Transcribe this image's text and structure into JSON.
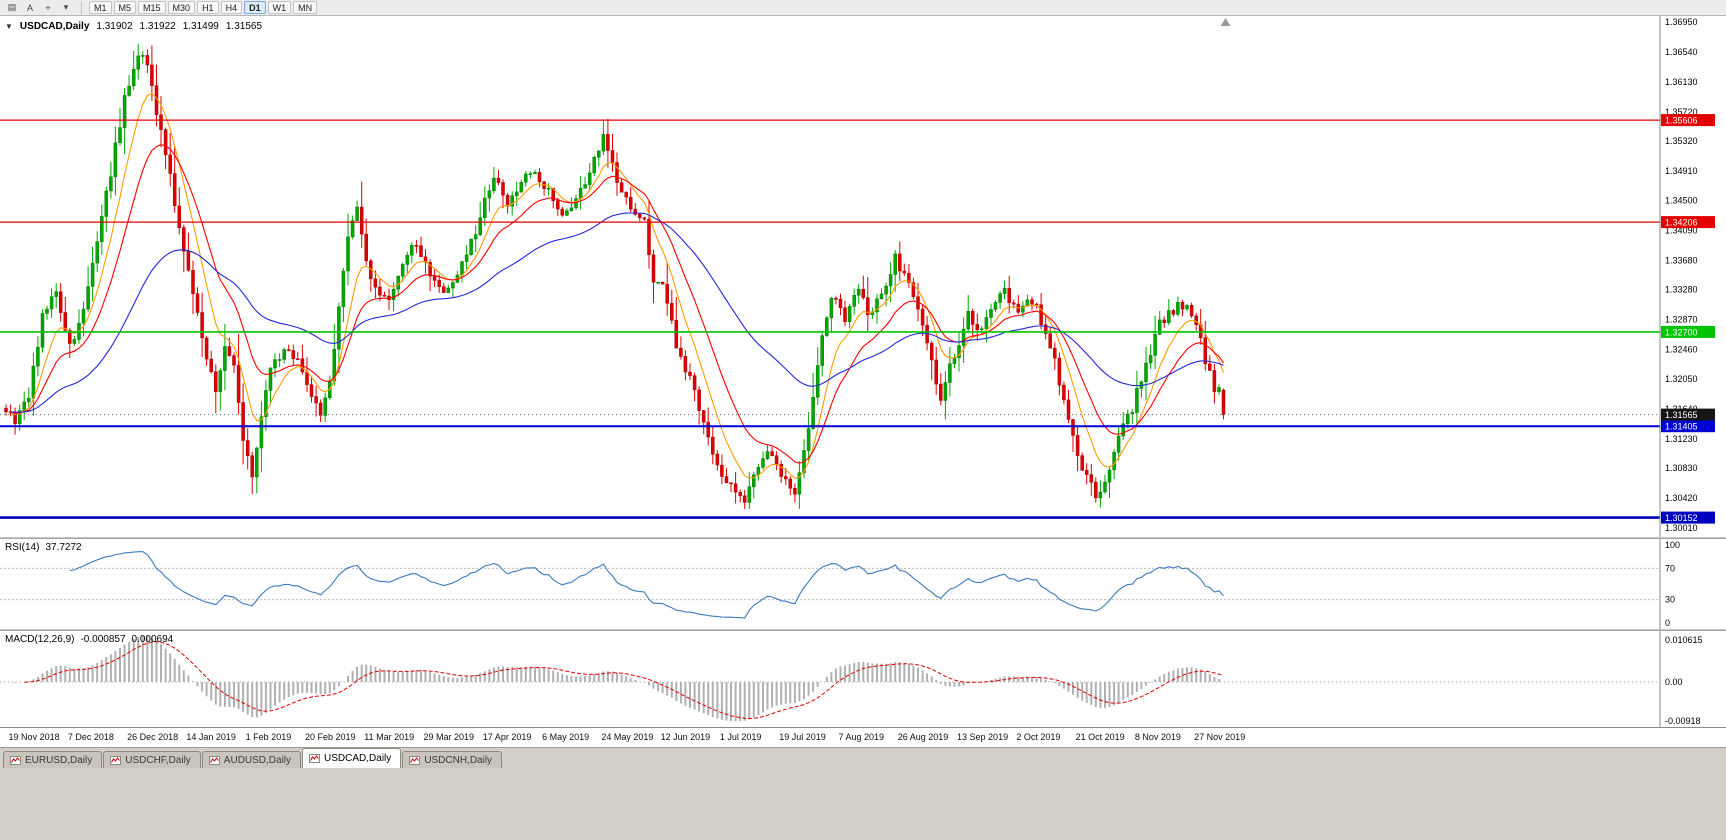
{
  "toolbar": {
    "left_icons": [
      {
        "id": "window-grid-icon",
        "glyph": "▤"
      },
      {
        "id": "font-icon",
        "glyph": "A"
      },
      {
        "id": "crosshair-icon",
        "glyph": "+"
      },
      {
        "id": "dropdown-chevron-icon",
        "glyph": "▾"
      }
    ],
    "timeframes": [
      "M1",
      "M5",
      "M15",
      "M30",
      "H1",
      "H4",
      "D1",
      "W1",
      "MN"
    ],
    "active_timeframe": "D1"
  },
  "chart": {
    "header": {
      "expander": "▼",
      "symbol": "USDCAD,Daily",
      "open": "1.31902",
      "high": "1.31922",
      "low": "1.31499",
      "close": "1.31565"
    },
    "y_axis": {
      "min": 1.2994,
      "max": 1.3698,
      "ticks": [
        "1.36950",
        "1.36540",
        "1.36130",
        "1.35720",
        "1.35320",
        "1.34910",
        "1.34500",
        "1.34090",
        "1.33680",
        "1.33280",
        "1.32870",
        "1.32460",
        "1.32050",
        "1.31640",
        "1.31230",
        "1.30830",
        "1.30420",
        "1.30010"
      ]
    },
    "levels": [
      {
        "value": 1.35606,
        "label": "1.35606",
        "color": "#e20000",
        "width": 1.2
      },
      {
        "value": 1.34206,
        "label": "1.34206",
        "color": "#e20000",
        "width": 1.2
      },
      {
        "value": 1.327,
        "label": "1.32700",
        "color": "#00c400",
        "width": 1.6
      },
      {
        "value": 1.31405,
        "label": "1.31405",
        "color": "#0000d8",
        "width": 2
      },
      {
        "value": 1.30152,
        "label": "1.30152",
        "color": "#0000c0",
        "width": 2.6
      }
    ],
    "current_price": {
      "value": 1.31565,
      "label": "1.31565",
      "bg": "#151515",
      "fg": "#ffffff"
    },
    "x_axis": {
      "first_bar": 1,
      "bar_step": 13,
      "dates": [
        "19 Nov 2018",
        "7 Dec 2018",
        "26 Dec 2018",
        "14 Jan 2019",
        "1 Feb 2019",
        "20 Feb 2019",
        "11 Mar 2019",
        "29 Mar 2019",
        "17 Apr 2019",
        "6 May 2019",
        "24 May 2019",
        "12 Jun 2019",
        "1 Jul 2019",
        "19 Jul 2019",
        "7 Aug 2019",
        "26 Aug 2019",
        "13 Sep 2019",
        "2 Oct 2019",
        "21 Oct 2019",
        "8 Nov 2019",
        "27 Nov 2019"
      ]
    }
  },
  "indicators": {
    "rsi": {
      "name": "RSI(14)",
      "value": "37.7272",
      "period": 14,
      "axis": [
        "100",
        "70",
        "30",
        "0"
      ],
      "upper_level": 70,
      "lower_level": 30,
      "color": "#3a7abd"
    },
    "macd": {
      "name": "MACD(12,26,9)",
      "value_main": "-0.000857",
      "value_signal": "0.000694",
      "fast": 12,
      "slow": 26,
      "signal": 9,
      "axis_top": "0.010615",
      "axis_zero": "0.00",
      "axis_bottom": "-0.00918",
      "range": [
        -0.00918,
        0.010615
      ],
      "histogram_color": "#b0b0b0",
      "signal_color": "#e00000"
    }
  },
  "tabs": {
    "items": [
      "EURUSD,Daily",
      "USDCHF,Daily",
      "AUDUSD,Daily",
      "USDCAD,Daily",
      "USDCNH,Daily"
    ],
    "active": "USDCAD,Daily"
  },
  "chart_data": {
    "type": "candlestick",
    "symbol": "USDCAD",
    "timeframe": "Daily",
    "bars": 268,
    "last_bar_ohlc": [
      1.31902,
      1.31922,
      1.31499,
      1.31565
    ],
    "price_path_anchors": [
      [
        0,
        1.3165
      ],
      [
        2,
        1.3145
      ],
      [
        5,
        1.3185
      ],
      [
        8,
        1.329
      ],
      [
        11,
        1.333
      ],
      [
        14,
        1.325
      ],
      [
        17,
        1.33
      ],
      [
        20,
        1.339
      ],
      [
        23,
        1.349
      ],
      [
        26,
        1.359
      ],
      [
        29,
        1.365
      ],
      [
        31,
        1.3635
      ],
      [
        33,
        1.357
      ],
      [
        35,
        1.352
      ],
      [
        37,
        1.345
      ],
      [
        39,
        1.338
      ],
      [
        41,
        1.332
      ],
      [
        44,
        1.324
      ],
      [
        46,
        1.3185
      ],
      [
        48,
        1.3255
      ],
      [
        50,
        1.323
      ],
      [
        52,
        1.312
      ],
      [
        54,
        1.3075
      ],
      [
        56,
        1.315
      ],
      [
        58,
        1.3215
      ],
      [
        61,
        1.325
      ],
      [
        64,
        1.3235
      ],
      [
        67,
        1.318
      ],
      [
        69,
        1.3155
      ],
      [
        71,
        1.32
      ],
      [
        73,
        1.33
      ],
      [
        75,
        1.34
      ],
      [
        77,
        1.3435
      ],
      [
        79,
        1.337
      ],
      [
        81,
        1.333
      ],
      [
        84,
        1.331
      ],
      [
        87,
        1.336
      ],
      [
        90,
        1.3395
      ],
      [
        93,
        1.3345
      ],
      [
        96,
        1.333
      ],
      [
        99,
        1.3345
      ],
      [
        102,
        1.339
      ],
      [
        105,
        1.345
      ],
      [
        107,
        1.3485
      ],
      [
        110,
        1.3445
      ],
      [
        113,
        1.3475
      ],
      [
        116,
        1.349
      ],
      [
        119,
        1.3465
      ],
      [
        122,
        1.343
      ],
      [
        125,
        1.3455
      ],
      [
        128,
        1.3485
      ],
      [
        130,
        1.352
      ],
      [
        131,
        1.3545
      ],
      [
        132,
        1.3515
      ],
      [
        134,
        1.348
      ],
      [
        137,
        1.3445
      ],
      [
        140,
        1.342
      ],
      [
        142,
        1.334
      ],
      [
        144,
        1.3335
      ],
      [
        146,
        1.328
      ],
      [
        148,
        1.323
      ],
      [
        151,
        1.3195
      ],
      [
        153,
        1.314
      ],
      [
        156,
        1.309
      ],
      [
        159,
        1.3055
      ],
      [
        162,
        1.304
      ],
      [
        165,
        1.309
      ],
      [
        168,
        1.3105
      ],
      [
        171,
        1.3065
      ],
      [
        173,
        1.3045
      ],
      [
        176,
        1.314
      ],
      [
        179,
        1.326
      ],
      [
        181,
        1.332
      ],
      [
        184,
        1.329
      ],
      [
        187,
        1.333
      ],
      [
        189,
        1.329
      ],
      [
        192,
        1.332
      ],
      [
        195,
        1.337
      ],
      [
        198,
        1.334
      ],
      [
        200,
        1.33
      ],
      [
        203,
        1.323
      ],
      [
        205,
        1.318
      ],
      [
        208,
        1.324
      ],
      [
        211,
        1.3295
      ],
      [
        213,
        1.327
      ],
      [
        216,
        1.33
      ],
      [
        219,
        1.333
      ],
      [
        222,
        1.329
      ],
      [
        225,
        1.3315
      ],
      [
        228,
        1.327
      ],
      [
        230,
        1.323
      ],
      [
        233,
        1.315
      ],
      [
        236,
        1.308
      ],
      [
        239,
        1.3045
      ],
      [
        241,
        1.306
      ],
      [
        244,
        1.3125
      ],
      [
        247,
        1.3165
      ],
      [
        250,
        1.3225
      ],
      [
        253,
        1.328
      ],
      [
        256,
        1.33
      ],
      [
        259,
        1.331
      ],
      [
        261,
        1.3285
      ],
      [
        263,
        1.323
      ],
      [
        265,
        1.319
      ],
      [
        266,
        1.319
      ],
      [
        267,
        1.31565
      ]
    ],
    "moving_averages": [
      {
        "period": 8,
        "color": "#ff9c00"
      },
      {
        "period": 17,
        "color": "#ff0000"
      },
      {
        "period": 52,
        "color": "#2428d8"
      }
    ],
    "horizontal_levels": [
      1.35606,
      1.34206,
      1.327,
      1.31405,
      1.30152
    ],
    "candle_up_color": "#00a800",
    "candle_down_color": "#e00000"
  }
}
